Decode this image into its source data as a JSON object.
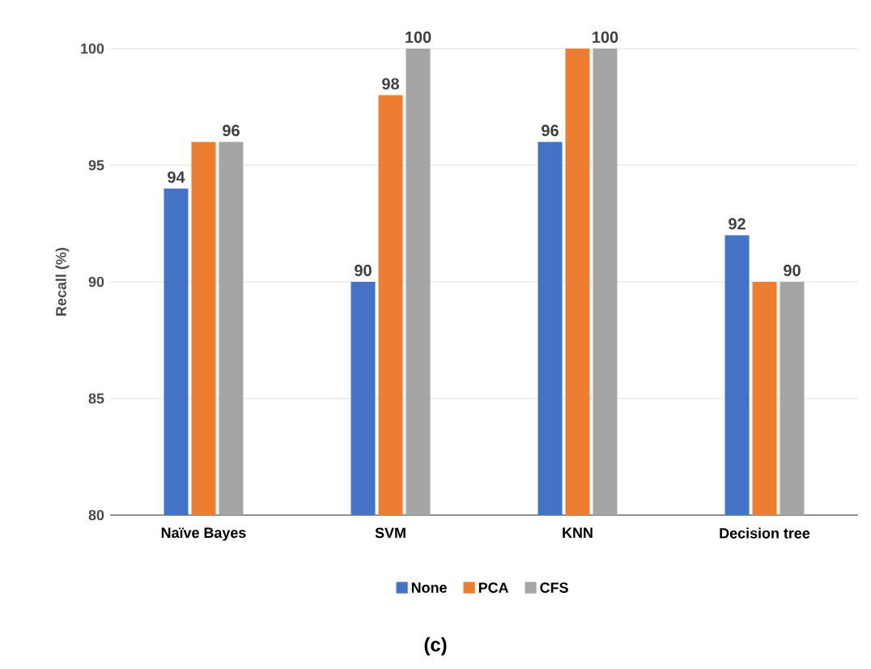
{
  "chart_data": {
    "type": "bar",
    "ylabel": "Recall (%)",
    "categories": [
      "Naïve Bayes",
      "SVM",
      "KNN",
      "Decision tree"
    ],
    "series": [
      {
        "name": "None",
        "color": "#4472c4",
        "values": [
          94,
          90,
          96,
          92
        ],
        "value_labels": [
          "94",
          "90",
          "96",
          "92"
        ]
      },
      {
        "name": "PCA",
        "color": "#ed7d31",
        "values": [
          96,
          98,
          100,
          90
        ],
        "value_labels": [
          null,
          "98",
          null,
          null
        ]
      },
      {
        "name": "CFS",
        "color": "#a5a5a5",
        "values": [
          96,
          100,
          100,
          90
        ],
        "value_labels": [
          "96",
          "100",
          "100",
          "90"
        ]
      }
    ],
    "ylim": [
      80,
      100
    ],
    "yticks": [
      80,
      85,
      90,
      95,
      100
    ],
    "grid": "y",
    "legend": "bottom",
    "annotations": [
      "(c)"
    ]
  }
}
